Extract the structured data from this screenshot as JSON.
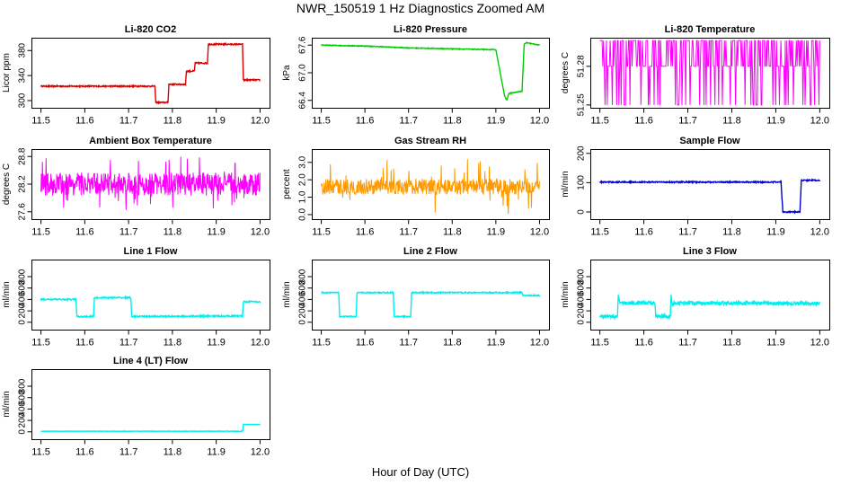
{
  "page": {
    "title": "NWR_150519  1 Hz Diagnostics Zoomed AM",
    "xlabel": "Hour of Day (UTC)"
  },
  "chart_data": [
    {
      "type": "line",
      "title": "Li-820 CO2",
      "ylabel": "Licor ppm",
      "color": "#dd0000",
      "xlim": [
        11.5,
        12.0
      ],
      "xticks": [
        11.5,
        11.6,
        11.7,
        11.8,
        11.9,
        12.0
      ],
      "xtick_labels": [
        "11.5",
        "11.6",
        "11.7",
        "11.8",
        "11.9",
        "12.0"
      ],
      "ylim": [
        293,
        396
      ],
      "yticks": [
        300,
        340,
        380
      ],
      "ytick_labels": [
        "300",
        "340",
        "380"
      ],
      "noise": 1.0,
      "series": [
        {
          "x": [
            11.5,
            11.76,
            11.762,
            11.79,
            11.792,
            11.83,
            11.832,
            11.85,
            11.852,
            11.88,
            11.882,
            11.96,
            11.962,
            12.0
          ],
          "y": [
            323,
            323,
            297,
            297,
            326,
            326,
            347,
            347,
            360,
            360,
            390,
            390,
            333,
            333
          ]
        }
      ]
    },
    {
      "type": "line",
      "title": "Li-820 Pressure",
      "ylabel": "kPa",
      "color": "#00cc00",
      "xlim": [
        11.5,
        12.0
      ],
      "xticks": [
        11.5,
        11.6,
        11.7,
        11.8,
        11.9,
        12.0
      ],
      "xtick_labels": [
        "11.5",
        "11.6",
        "11.7",
        "11.8",
        "11.9",
        "12.0"
      ],
      "ylim": [
        66.3,
        67.7
      ],
      "yticks": [
        66.4,
        67.0,
        67.6
      ],
      "ytick_labels": [
        "66.4",
        "67.0",
        "67.6"
      ],
      "noise": 0.008,
      "series": [
        {
          "x": [
            11.5,
            11.6,
            11.7,
            11.8,
            11.9,
            11.92,
            11.925,
            11.93,
            11.96,
            11.962,
            11.965,
            11.97,
            12.0
          ],
          "y": [
            67.6,
            67.58,
            67.54,
            67.52,
            67.5,
            66.5,
            66.4,
            66.55,
            66.6,
            67.0,
            67.62,
            67.65,
            67.6
          ]
        }
      ]
    },
    {
      "type": "step-noise",
      "title": "Li-820 Temperature",
      "ylabel": "degrees C",
      "color": "#ff00ff",
      "xlim": [
        11.5,
        12.0
      ],
      "xticks": [
        11.5,
        11.6,
        11.7,
        11.8,
        11.9,
        12.0
      ],
      "xtick_labels": [
        "11.5",
        "11.6",
        "11.7",
        "11.8",
        "11.9",
        "12.0"
      ],
      "ylim": [
        51.25,
        51.3
      ],
      "yticks": [
        51.25,
        51.28
      ],
      "ytick_labels": [
        "51.25",
        "51.28"
      ],
      "levels": [
        51.25,
        51.28,
        51.3
      ]
    },
    {
      "type": "noise",
      "title": "Ambient Box Temperature",
      "ylabel": "degrees C",
      "color": "#ff00ff",
      "xlim": [
        11.5,
        12.0
      ],
      "xticks": [
        11.5,
        11.6,
        11.7,
        11.8,
        11.9,
        12.0
      ],
      "xtick_labels": [
        "11.5",
        "11.6",
        "11.7",
        "11.8",
        "11.9",
        "12.0"
      ],
      "ylim": [
        27.5,
        28.9
      ],
      "yticks": [
        27.6,
        28.2,
        28.8
      ],
      "ytick_labels": [
        "27.6",
        "28.2",
        "28.8"
      ],
      "center": 28.2,
      "spread": 0.25,
      "spikes": 0.6
    },
    {
      "type": "noise",
      "title": "Gas Stream RH",
      "ylabel": "percent",
      "color": "#ff9900",
      "xlim": [
        11.5,
        12.0
      ],
      "xticks": [
        11.5,
        11.6,
        11.7,
        11.8,
        11.9,
        12.0
      ],
      "xtick_labels": [
        "11.5",
        "11.6",
        "11.7",
        "11.8",
        "11.9",
        "12.0"
      ],
      "ylim": [
        -0.1,
        3.6
      ],
      "yticks": [
        0.0,
        1.0,
        2.0,
        3.0
      ],
      "ytick_labels": [
        "0.0",
        "1.0",
        "2.0",
        "3.0"
      ],
      "center": 1.6,
      "spread": 0.45,
      "spikes": 1.6
    },
    {
      "type": "line",
      "title": "Sample Flow",
      "ylabel": "ml/min",
      "color": "#0000cc",
      "xlim": [
        11.5,
        12.0
      ],
      "xticks": [
        11.5,
        11.6,
        11.7,
        11.8,
        11.9,
        12.0
      ],
      "xtick_labels": [
        "11.5",
        "11.6",
        "11.7",
        "11.8",
        "11.9",
        "12.0"
      ],
      "ylim": [
        -15,
        205
      ],
      "yticks": [
        0,
        100,
        200
      ],
      "ytick_labels": [
        "0",
        "100",
        "200"
      ],
      "noise": 2,
      "series": [
        {
          "x": [
            11.5,
            11.912,
            11.916,
            11.955,
            11.958,
            12.0
          ],
          "y": [
            102,
            102,
            0,
            0,
            108,
            108
          ]
        }
      ]
    },
    {
      "type": "line",
      "title": "Line 1 Flow",
      "ylabel": "ml/min",
      "color": "#00eeee",
      "xlim": [
        11.5,
        12.0
      ],
      "xticks": [
        11.5,
        11.6,
        11.7,
        11.8,
        11.9,
        12.0
      ],
      "xtick_labels": [
        "11.5",
        "11.6",
        "11.7",
        "11.8",
        "11.9",
        "12.0"
      ],
      "ylim": [
        -80,
        1050
      ],
      "yticks": [
        0,
        200,
        400,
        600,
        800
      ],
      "ytick_labels": [
        "0",
        "200",
        "400",
        "600",
        "800"
      ],
      "noise": 12,
      "series": [
        {
          "x": [
            11.5,
            11.58,
            11.582,
            11.62,
            11.622,
            11.705,
            11.707,
            11.96,
            11.962,
            12.0
          ],
          "y": [
            400,
            400,
            100,
            100,
            430,
            430,
            100,
            110,
            360,
            360
          ]
        }
      ]
    },
    {
      "type": "line",
      "title": "Line 2 Flow",
      "ylabel": "ml/min",
      "color": "#00eeee",
      "xlim": [
        11.5,
        12.0
      ],
      "xticks": [
        11.5,
        11.6,
        11.7,
        11.8,
        11.9,
        12.0
      ],
      "xtick_labels": [
        "11.5",
        "11.6",
        "11.7",
        "11.8",
        "11.9",
        "12.0"
      ],
      "ylim": [
        -80,
        1050
      ],
      "yticks": [
        0,
        200,
        400,
        600,
        800
      ],
      "ytick_labels": [
        "0",
        "200",
        "400",
        "600",
        "800"
      ],
      "noise": 10,
      "series": [
        {
          "x": [
            11.5,
            11.54,
            11.542,
            11.58,
            11.582,
            11.665,
            11.667,
            11.705,
            11.707,
            11.96,
            11.962,
            12.0
          ],
          "y": [
            520,
            520,
            100,
            100,
            520,
            520,
            100,
            100,
            520,
            520,
            470,
            470
          ]
        }
      ]
    },
    {
      "type": "line",
      "title": "Line 3 Flow",
      "ylabel": "ml/min",
      "color": "#00eeee",
      "xlim": [
        11.5,
        12.0
      ],
      "xticks": [
        11.5,
        11.6,
        11.7,
        11.8,
        11.9,
        12.0
      ],
      "xtick_labels": [
        "11.5",
        "11.6",
        "11.7",
        "11.8",
        "11.9",
        "12.0"
      ],
      "ylim": [
        -80,
        1050
      ],
      "yticks": [
        0,
        200,
        400,
        600,
        800
      ],
      "ytick_labels": [
        "0",
        "200",
        "400",
        "600",
        "800"
      ],
      "noise": 30,
      "series": [
        {
          "x": [
            11.5,
            11.54,
            11.542,
            11.545,
            11.55,
            11.625,
            11.627,
            11.66,
            11.662,
            11.665,
            11.67,
            12.0
          ],
          "y": [
            100,
            100,
            480,
            360,
            340,
            340,
            100,
            100,
            480,
            300,
            340,
            330
          ]
        }
      ]
    },
    {
      "type": "line",
      "title": "Line 4 (LT) Flow",
      "ylabel": "ml/min",
      "color": "#00eeee",
      "xlim": [
        11.5,
        12.0
      ],
      "xticks": [
        11.5,
        11.6,
        11.7,
        11.8,
        11.9,
        12.0
      ],
      "xtick_labels": [
        "11.5",
        "11.6",
        "11.7",
        "11.8",
        "11.9",
        "12.0"
      ],
      "ylim": [
        -80,
        1050
      ],
      "yticks": [
        0,
        200,
        400,
        600,
        800
      ],
      "ytick_labels": [
        "0",
        "200",
        "400",
        "600",
        "800"
      ],
      "noise": 3,
      "series": [
        {
          "x": [
            11.5,
            11.96,
            11.962,
            12.0
          ],
          "y": [
            10,
            10,
            130,
            130
          ]
        }
      ]
    }
  ]
}
